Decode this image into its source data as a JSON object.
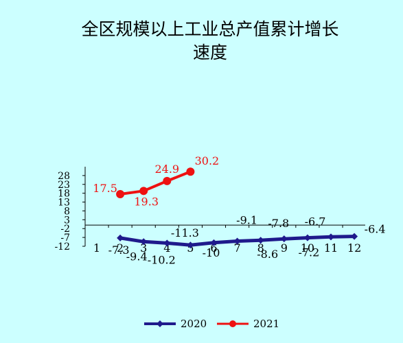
{
  "chart_data": {
    "type": "line",
    "title_lines": [
      "全区规模以上工业总产值累计增长",
      "速度"
    ],
    "xlabel": "",
    "ylabel": "",
    "categories": [
      "1",
      "2",
      "3",
      "4",
      "5",
      "6",
      "7",
      "8",
      "9",
      "10",
      "11",
      "12"
    ],
    "y_ticks": [
      28,
      23,
      18,
      13,
      8,
      3,
      -2,
      -7,
      -12
    ],
    "ylim": [
      -12,
      33
    ],
    "series": [
      {
        "name": "2020",
        "color": "#1f1a8c",
        "marker": "diamond",
        "values": [
          null,
          -7.3,
          -9.4,
          -10.2,
          -11.3,
          -10,
          -9.1,
          -8.6,
          -7.8,
          -7.2,
          -6.7,
          -6.4
        ],
        "labels": [
          null,
          "-7.3",
          "-9.4",
          "-10.2",
          "-11.3",
          "-10",
          "-9.1",
          "-8.6",
          "-7.8",
          "-7.2",
          "-6.7",
          "-6.4"
        ]
      },
      {
        "name": "2021",
        "color": "#ee1111",
        "marker": "circle",
        "values": [
          null,
          17.5,
          19.3,
          24.9,
          30.2,
          null,
          null,
          null,
          null,
          null,
          null,
          null
        ],
        "labels": [
          null,
          "17.5",
          "19.3",
          "24.9",
          "30.2",
          null,
          null,
          null,
          null,
          null,
          null,
          null
        ]
      }
    ],
    "legend_position": "bottom",
    "grid": false
  }
}
